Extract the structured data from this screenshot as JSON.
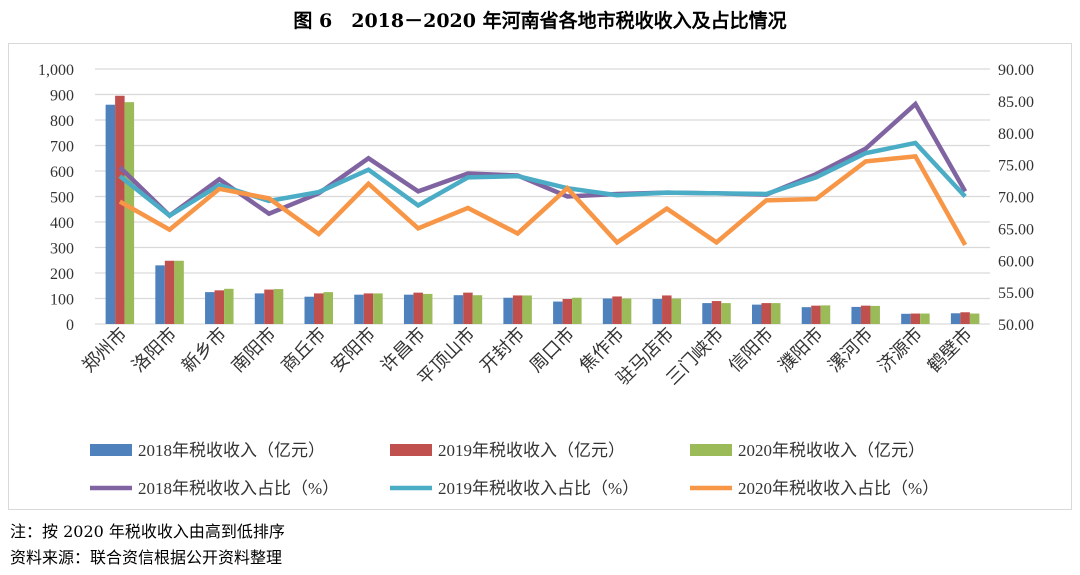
{
  "title": "图 6　2018－2020 年河南省各地市税收收入及占比情况",
  "notes": [
    "注：按 2020 年税收收入由高到低排序",
    "资料来源：联合资信根据公开资料整理"
  ],
  "chart_data": {
    "type": "bar+line",
    "categories": [
      "郑州市",
      "洛阳市",
      "新乡市",
      "南阳市",
      "商丘市",
      "安阳市",
      "许昌市",
      "平顶山市",
      "开封市",
      "周口市",
      "焦作市",
      "驻马店市",
      "三门峡市",
      "信阳市",
      "濮阳市",
      "漯河市",
      "济源市",
      "鹤壁市"
    ],
    "left_axis": {
      "min": 0,
      "max": 1000,
      "step": 100,
      "ticks": [
        "0",
        "100",
        "200",
        "300",
        "400",
        "500",
        "600",
        "700",
        "800",
        "900",
        "1,000"
      ]
    },
    "right_axis": {
      "min": 50,
      "max": 90,
      "step": 5,
      "ticks": [
        "50.00",
        "55.00",
        "60.00",
        "65.00",
        "70.00",
        "75.00",
        "80.00",
        "85.00",
        "90.00"
      ]
    },
    "grid": true,
    "legend_position": "bottom",
    "bar_series": [
      {
        "name": "2018年税收收入（亿元）",
        "color": "#4f81bd",
        "values": [
          860,
          230,
          125,
          120,
          107,
          115,
          115,
          113,
          103,
          88,
          100,
          98,
          82,
          76,
          66,
          67,
          40,
          42
        ]
      },
      {
        "name": "2019年税收收入（亿元）",
        "color": "#c0504d",
        "values": [
          895,
          248,
          132,
          135,
          120,
          120,
          123,
          123,
          112,
          98,
          108,
          112,
          90,
          82,
          72,
          72,
          41,
          46
        ]
      },
      {
        "name": "2020年税收收入（亿元）",
        "color": "#9bbb59",
        "values": [
          870,
          248,
          138,
          137,
          125,
          120,
          118,
          113,
          112,
          103,
          100,
          100,
          82,
          82,
          73,
          71,
          41,
          41
        ]
      }
    ],
    "line_series": [
      {
        "name": "2018年税收收入占比（%）",
        "color": "#8064a2",
        "values": [
          74.6,
          67.0,
          72.7,
          67.3,
          70.5,
          76.0,
          70.8,
          73.6,
          73.3,
          70.0,
          70.4,
          70.6,
          70.5,
          70.3,
          73.5,
          77.5,
          84.5,
          70.8
        ]
      },
      {
        "name": "2019年税收收入占比（%）",
        "color": "#4bacc6",
        "values": [
          73.2,
          67.0,
          71.8,
          69.3,
          70.7,
          74.2,
          68.6,
          73.0,
          73.2,
          71.3,
          70.2,
          70.6,
          70.5,
          70.4,
          73.0,
          76.8,
          78.4,
          70.0
        ]
      },
      {
        "name": "2020年税收收入占比（%）",
        "color": "#f79646",
        "values": [
          69.2,
          64.8,
          71.2,
          69.7,
          64.1,
          72.0,
          65.0,
          68.2,
          64.2,
          71.3,
          62.8,
          68.1,
          62.8,
          69.4,
          69.6,
          75.5,
          76.3,
          62.4
        ]
      }
    ]
  }
}
